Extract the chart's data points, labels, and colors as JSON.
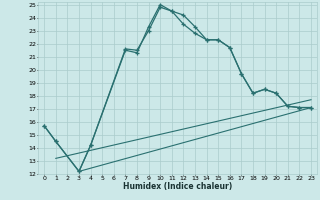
{
  "xlabel": "Humidex (Indice chaleur)",
  "bg_color": "#cce8e8",
  "grid_color": "#aacccc",
  "line_color": "#2a7070",
  "xlim": [
    -0.5,
    23.5
  ],
  "ylim": [
    12,
    25.2
  ],
  "xticks": [
    0,
    1,
    2,
    3,
    4,
    5,
    6,
    7,
    8,
    9,
    10,
    11,
    12,
    13,
    14,
    15,
    16,
    17,
    18,
    19,
    20,
    21,
    22,
    23
  ],
  "yticks": [
    12,
    13,
    14,
    15,
    16,
    17,
    18,
    19,
    20,
    21,
    22,
    23,
    24,
    25
  ],
  "curve1_x": [
    0,
    1,
    3,
    4,
    7,
    8,
    9,
    10,
    11,
    12,
    13,
    14,
    15,
    16,
    17,
    18,
    19,
    20,
    21,
    22,
    23
  ],
  "curve1_y": [
    15.7,
    14.5,
    12.2,
    14.2,
    21.5,
    21.3,
    23.3,
    25.0,
    24.5,
    24.2,
    23.3,
    22.3,
    22.3,
    21.7,
    19.7,
    18.2,
    18.5,
    18.2,
    17.2,
    17.1,
    17.1
  ],
  "curve2_x": [
    0,
    1,
    3,
    4,
    7,
    8,
    9,
    10,
    11,
    12,
    13,
    14,
    15,
    16,
    17,
    18,
    19,
    20,
    21,
    22,
    23
  ],
  "curve2_y": [
    15.7,
    14.5,
    12.2,
    14.2,
    21.6,
    21.5,
    23.0,
    24.8,
    24.5,
    23.5,
    22.8,
    22.3,
    22.3,
    21.7,
    19.7,
    18.2,
    18.5,
    18.2,
    17.2,
    17.1,
    17.1
  ],
  "line1_x": [
    1,
    23
  ],
  "line1_y": [
    13.2,
    17.7
  ],
  "line2_x": [
    3,
    23
  ],
  "line2_y": [
    12.2,
    17.1
  ]
}
